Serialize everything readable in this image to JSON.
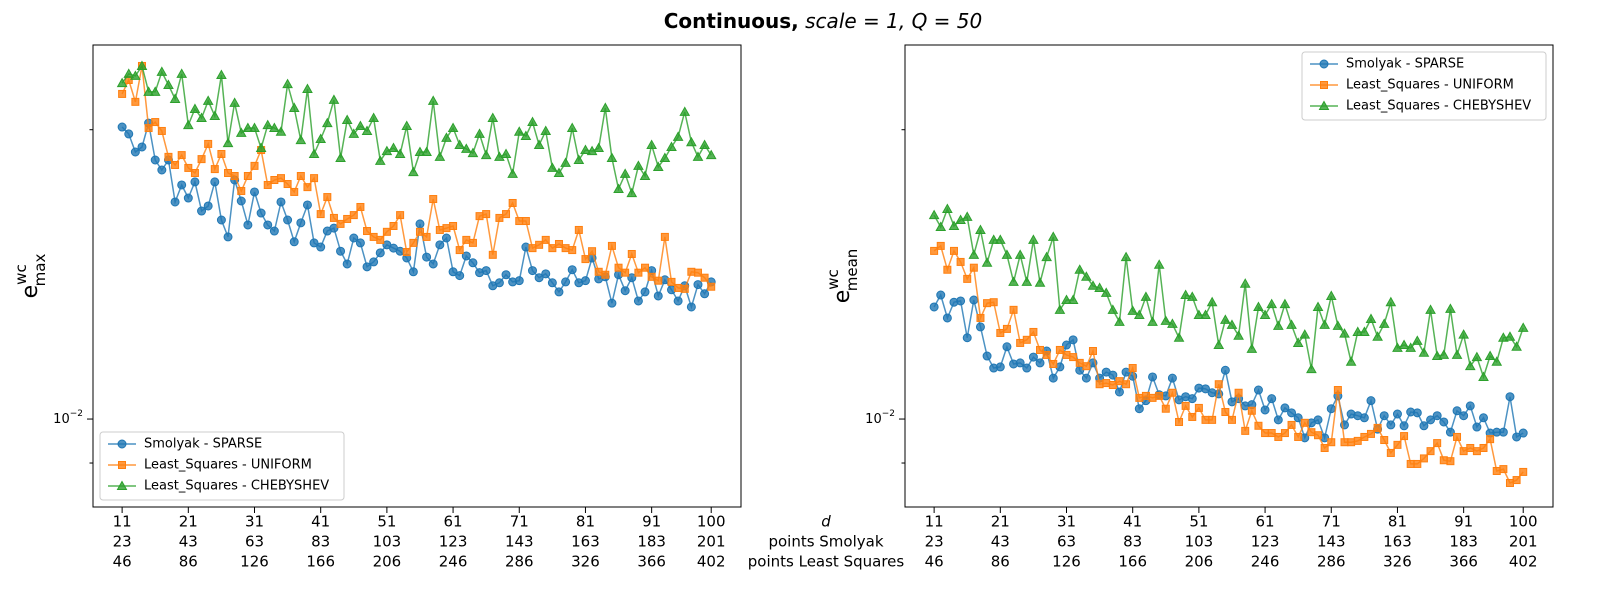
{
  "figure": {
    "title_bold": "Continuous,",
    "title_rest": "scale = 1, Q = 50",
    "x_row_labels": [
      "d",
      "points Smolyak",
      "points Least Squares"
    ]
  },
  "chart_data": [
    {
      "type": "line",
      "log_y": true,
      "legend": "lower left",
      "ylabel": {
        "base": "e",
        "sup": "wc",
        "sub": "max"
      },
      "xlim": [
        6.6,
        104.5
      ],
      "ylim": [
        0.0081,
        0.0245
      ],
      "xticks": [
        11,
        21,
        31,
        41,
        51,
        61,
        71,
        81,
        91,
        100
      ],
      "xtick_rows": [
        [
          23,
          43,
          63,
          83,
          103,
          123,
          143,
          163,
          183,
          201
        ],
        [
          46,
          86,
          126,
          166,
          206,
          246,
          286,
          326,
          366,
          402
        ]
      ],
      "yticks": [
        {
          "value": 0.01,
          "label": "10",
          "label_exponent": "−2"
        }
      ],
      "yminor_ticks": [
        0.009,
        0.02
      ],
      "x": [
        11,
        12,
        13,
        14,
        15,
        16,
        17,
        18,
        19,
        20,
        21,
        22,
        23,
        24,
        25,
        26,
        27,
        28,
        29,
        30,
        31,
        32,
        33,
        34,
        35,
        36,
        37,
        38,
        39,
        40,
        41,
        42,
        43,
        44,
        45,
        46,
        47,
        48,
        49,
        50,
        51,
        52,
        53,
        54,
        55,
        56,
        57,
        58,
        59,
        60,
        61,
        62,
        63,
        64,
        65,
        66,
        67,
        68,
        69,
        70,
        71,
        72,
        73,
        74,
        75,
        76,
        77,
        78,
        79,
        80,
        81,
        82,
        83,
        84,
        85,
        86,
        87,
        88,
        89,
        90,
        91,
        92,
        93,
        94,
        95,
        96,
        97,
        98,
        99,
        100
      ],
      "series": [
        {
          "name": "Smolyak - SPARSE",
          "color": "#1f77b4",
          "marker": "circle",
          "values": [
            0.02013,
            0.0198,
            0.01896,
            0.01919,
            0.02032,
            0.0186,
            0.01816,
            0.0186,
            0.01682,
            0.01752,
            0.01698,
            0.01765,
            0.01646,
            0.01666,
            0.01765,
            0.01611,
            0.01547,
            0.01773,
            0.01686,
            0.01592,
            0.01723,
            0.01638,
            0.01592,
            0.01569,
            0.01682,
            0.01611,
            0.01529,
            0.016,
            0.0167,
            0.01525,
            0.0151,
            0.01569,
            0.0158,
            0.01495,
            0.0145,
            0.01543,
            0.01525,
            0.0144,
            0.01457,
            0.01489,
            0.01518,
            0.01506,
            0.01495,
            0.01471,
            0.01423,
            0.01596,
            0.01474,
            0.0145,
            0.01518,
            0.01543,
            0.01423,
            0.0141,
            0.01478,
            0.01454,
            0.0142,
            0.01427,
            0.01376,
            0.01386,
            0.01413,
            0.01389,
            0.01393,
            0.0151,
            0.01427,
            0.01403,
            0.01416,
            0.01386,
            0.01356,
            0.01389,
            0.0143,
            0.01386,
            0.01393,
            0.01471,
            0.01399,
            0.01406,
            0.0132,
            0.01413,
            0.0136,
            0.01403,
            0.01327,
            0.01356,
            0.01427,
            0.01343,
            0.01396,
            0.01363,
            0.01327,
            0.01376,
            0.01308,
            0.0138,
            0.0135,
            0.01389
          ]
        },
        {
          "name": "Least_Squares - UNIFORM",
          "color": "#ff7f0e",
          "marker": "square",
          "values": [
            0.02179,
            0.02253,
            0.02138,
            0.0233,
            0.02008,
            0.02037,
            0.01994,
            0.01874,
            0.01838,
            0.01882,
            0.01825,
            0.01803,
            0.01864,
            0.01933,
            0.0182,
            0.01887,
            0.01803,
            0.0179,
            0.01727,
            0.0179,
            0.01834,
            0.01905,
            0.01752,
            0.01773,
            0.01781,
            0.01756,
            0.01723,
            0.0179,
            0.01743,
            0.01781,
            0.01634,
            0.01702,
            0.01619,
            0.01596,
            0.01615,
            0.0163,
            0.01662,
            0.01569,
            0.01547,
            0.01536,
            0.01566,
            0.01588,
            0.0163,
            0.01492,
            0.01525,
            0.01566,
            0.01547,
            0.01694,
            0.01573,
            0.0158,
            0.01588,
            0.01499,
            0.01536,
            0.01525,
            0.01626,
            0.01634,
            0.01482,
            0.01619,
            0.01634,
            0.01678,
            0.01607,
            0.01607,
            0.01506,
            0.01518,
            0.01536,
            0.01506,
            0.01521,
            0.01506,
            0.01499,
            0.01573,
            0.01467,
            0.01495,
            0.01423,
            0.01413,
            0.01514,
            0.01437,
            0.0142,
            0.01485,
            0.0142,
            0.01437,
            0.01406,
            0.01393,
            0.01547,
            0.01389,
            0.01369,
            0.01366,
            0.01423,
            0.0142,
            0.01403,
            0.01373
          ]
        },
        {
          "name": "Least_Squares - CHEBYSHEV",
          "color": "#2ca02c",
          "marker": "triangle",
          "values": [
            0.02236,
            0.02286,
            0.02275,
            0.0233,
            0.0219,
            0.0219,
            0.02297,
            0.02226,
            0.02153,
            0.02286,
            0.02022,
            0.02102,
            0.02057,
            0.02143,
            0.02067,
            0.0228,
            0.01937,
            0.02133,
            0.01985,
            0.02008,
            0.02008,
            0.01914,
            0.02022,
            0.02008,
            0.0199,
            0.02231,
            0.02107,
            0.01951,
            0.02205,
            0.01887,
            0.01956,
            0.02032,
            0.02148,
            0.01869,
            0.02047,
            0.0198,
            0.02018,
            0.01994,
            0.02057,
            0.01856,
            0.019,
            0.01914,
            0.01887,
            0.02018,
            0.01807,
            0.01896,
            0.01896,
            0.02143,
            0.01874,
            0.01961,
            0.02008,
            0.01928,
            0.0191,
            0.01891,
            0.0198,
            0.01882,
            0.02057,
            0.01874,
            0.01887,
            0.01799,
            0.0199,
            0.0197,
            0.02037,
            0.01928,
            0.01994,
            0.01825,
            0.01803,
            0.01847,
            0.02008,
            0.0186,
            0.01905,
            0.019,
            0.01914,
            0.02107,
            0.01869,
            0.01735,
            0.01799,
            0.01718,
            0.01834,
            0.0179,
            0.01928,
            0.01829,
            0.01869,
            0.01919,
            0.01966,
            0.02087,
            0.01941,
            0.01874,
            0.01928,
            0.01882
          ]
        }
      ]
    },
    {
      "type": "line",
      "log_y": true,
      "legend": "upper right",
      "ylabel": {
        "base": "e",
        "sup": "wc",
        "sub": "mean"
      },
      "xlim": [
        6.6,
        104.5
      ],
      "ylim": [
        0.0081,
        0.0245
      ],
      "xticks": [
        11,
        21,
        31,
        41,
        51,
        61,
        71,
        81,
        91,
        100
      ],
      "xtick_rows": [
        [
          23,
          43,
          63,
          83,
          103,
          123,
          143,
          163,
          183,
          201
        ],
        [
          46,
          86,
          126,
          166,
          206,
          246,
          286,
          326,
          366,
          402
        ]
      ],
      "yticks": [
        {
          "value": 0.01,
          "label": "10",
          "label_exponent": "−2"
        }
      ],
      "yminor_ticks": [
        0.009,
        0.02
      ],
      "x": [
        11,
        12,
        13,
        14,
        15,
        16,
        17,
        18,
        19,
        20,
        21,
        22,
        23,
        24,
        25,
        26,
        27,
        28,
        29,
        30,
        31,
        32,
        33,
        34,
        35,
        36,
        37,
        38,
        39,
        40,
        41,
        42,
        43,
        44,
        45,
        46,
        47,
        48,
        49,
        50,
        51,
        52,
        53,
        54,
        55,
        56,
        57,
        58,
        59,
        60,
        61,
        62,
        63,
        64,
        65,
        66,
        67,
        68,
        69,
        70,
        71,
        72,
        73,
        74,
        75,
        76,
        77,
        78,
        79,
        80,
        81,
        82,
        83,
        84,
        85,
        86,
        87,
        88,
        89,
        90,
        91,
        92,
        93,
        94,
        95,
        96,
        97,
        98,
        99,
        100
      ],
      "series": [
        {
          "name": "Smolyak - SPARSE",
          "color": "#1f77b4",
          "marker": "circle",
          "values": [
            0.01308,
            0.01346,
            0.01274,
            0.01323,
            0.01327,
            0.01215,
            0.0133,
            0.01247,
            0.01163,
            0.0113,
            0.01133,
            0.01189,
            0.01141,
            0.01144,
            0.0113,
            0.0116,
            0.01144,
            0.01177,
            0.01103,
            0.01133,
            0.01194,
            0.01209,
            0.01124,
            0.01103,
            0.01144,
            0.01103,
            0.01119,
            0.01111,
            0.01067,
            0.01119,
            0.01108,
            0.01025,
            0.01045,
            0.01106,
            0.0106,
            0.01057,
            0.01103,
            0.01047,
            0.01055,
            0.0105,
            0.01077,
            0.01075,
            0.01065,
            0.01062,
            0.01124,
            0.01042,
            0.0105,
            0.01032,
            0.01035,
            0.01072,
            0.01022,
            0.0105,
            0.00998,
            0.01027,
            0.01015,
            0.01003,
            0.00956,
            0.00991,
            0.00998,
            0.00956,
            0.01025,
            0.01057,
            0.00986,
            0.01012,
            0.01008,
            0.01003,
            0.01045,
            0.00976,
            0.01008,
            0.00986,
            0.01012,
            0.00984,
            0.01017,
            0.01015,
            0.00984,
            0.00998,
            0.01008,
            0.00993,
            0.00969,
            0.0102,
            0.01008,
            0.01032,
            0.00981,
            0.01003,
            0.00967,
            0.00969,
            0.00969,
            0.01055,
            0.00958,
            0.00967
          ]
        },
        {
          "name": "Least_Squares - UNIFORM",
          "color": "#ff7f0e",
          "marker": "square",
          "values": [
            0.01496,
            0.01514,
            0.0143,
            0.01496,
            0.01457,
            0.01399,
            0.01437,
            0.01274,
            0.0132,
            0.01323,
            0.01229,
            0.01241,
            0.01299,
            0.012,
            0.01209,
            0.01232,
            0.0118,
            0.01166,
            0.01141,
            0.0118,
            0.01166,
            0.0116,
            0.01144,
            0.01135,
            0.01177,
            0.01087,
            0.0109,
            0.01085,
            0.01095,
            0.01087,
            0.0113,
            0.01052,
            0.01057,
            0.01052,
            0.01057,
            0.01025,
            0.01065,
            0.00993,
            0.01032,
            0.01005,
            0.01027,
            0.00998,
            0.00998,
            0.01087,
            0.01017,
            0.00998,
            0.01065,
            0.00972,
            0.0102,
            0.00984,
            0.00967,
            0.00967,
            0.00958,
            0.00967,
            0.00986,
            0.00958,
            0.00991,
            0.00969,
            0.00962,
            0.00933,
            0.00946,
            0.01072,
            0.00946,
            0.00946,
            0.00949,
            0.00958,
            0.00965,
            0.00979,
            0.00951,
            0.00922,
            0.0094,
            0.0096,
            0.00898,
            0.00898,
            0.0091,
            0.00926,
            0.00944,
            0.00906,
            0.00904,
            0.00958,
            0.00926,
            0.00933,
            0.00926,
            0.00933,
            0.00953,
            0.00883,
            0.00887,
            0.00858,
            0.00864,
            0.00881
          ]
        },
        {
          "name": "Least_Squares - CHEBYSHEV",
          "color": "#2ca02c",
          "marker": "triangle",
          "values": [
            0.0163,
            0.01584,
            0.01654,
            0.01588,
            0.01611,
            0.01623,
            0.01482,
            0.01573,
            0.01454,
            0.01536,
            0.01536,
            0.01482,
            0.01389,
            0.01482,
            0.01389,
            0.01536,
            0.01386,
            0.01474,
            0.01547,
            0.01299,
            0.0133,
            0.0133,
            0.0143,
            0.01406,
            0.01376,
            0.01369,
            0.01353,
            0.01299,
            0.01262,
            0.01474,
            0.01296,
            0.01283,
            0.0134,
            0.01262,
            0.01447,
            0.01265,
            0.01256,
            0.01215,
            0.01346,
            0.0134,
            0.01283,
            0.01283,
            0.01323,
            0.01194,
            0.01268,
            0.01253,
            0.01221,
            0.01383,
            0.01183,
            0.01308,
            0.01283,
            0.01317,
            0.0125,
            0.01317,
            0.01253,
            0.012,
            0.01224,
            0.01127,
            0.01308,
            0.01253,
            0.01343,
            0.0125,
            0.01227,
            0.01147,
            0.01232,
            0.01232,
            0.01271,
            0.01218,
            0.01256,
            0.01323,
            0.01186,
            0.01194,
            0.01186,
            0.01206,
            0.01172,
            0.01299,
            0.01163,
            0.01166,
            0.01302,
            0.01166,
            0.01224,
            0.01135,
            0.0116,
            0.01106,
            0.01163,
            0.01147,
            0.01215,
            0.01218,
            0.01189,
            0.01244
          ]
        }
      ]
    }
  ]
}
